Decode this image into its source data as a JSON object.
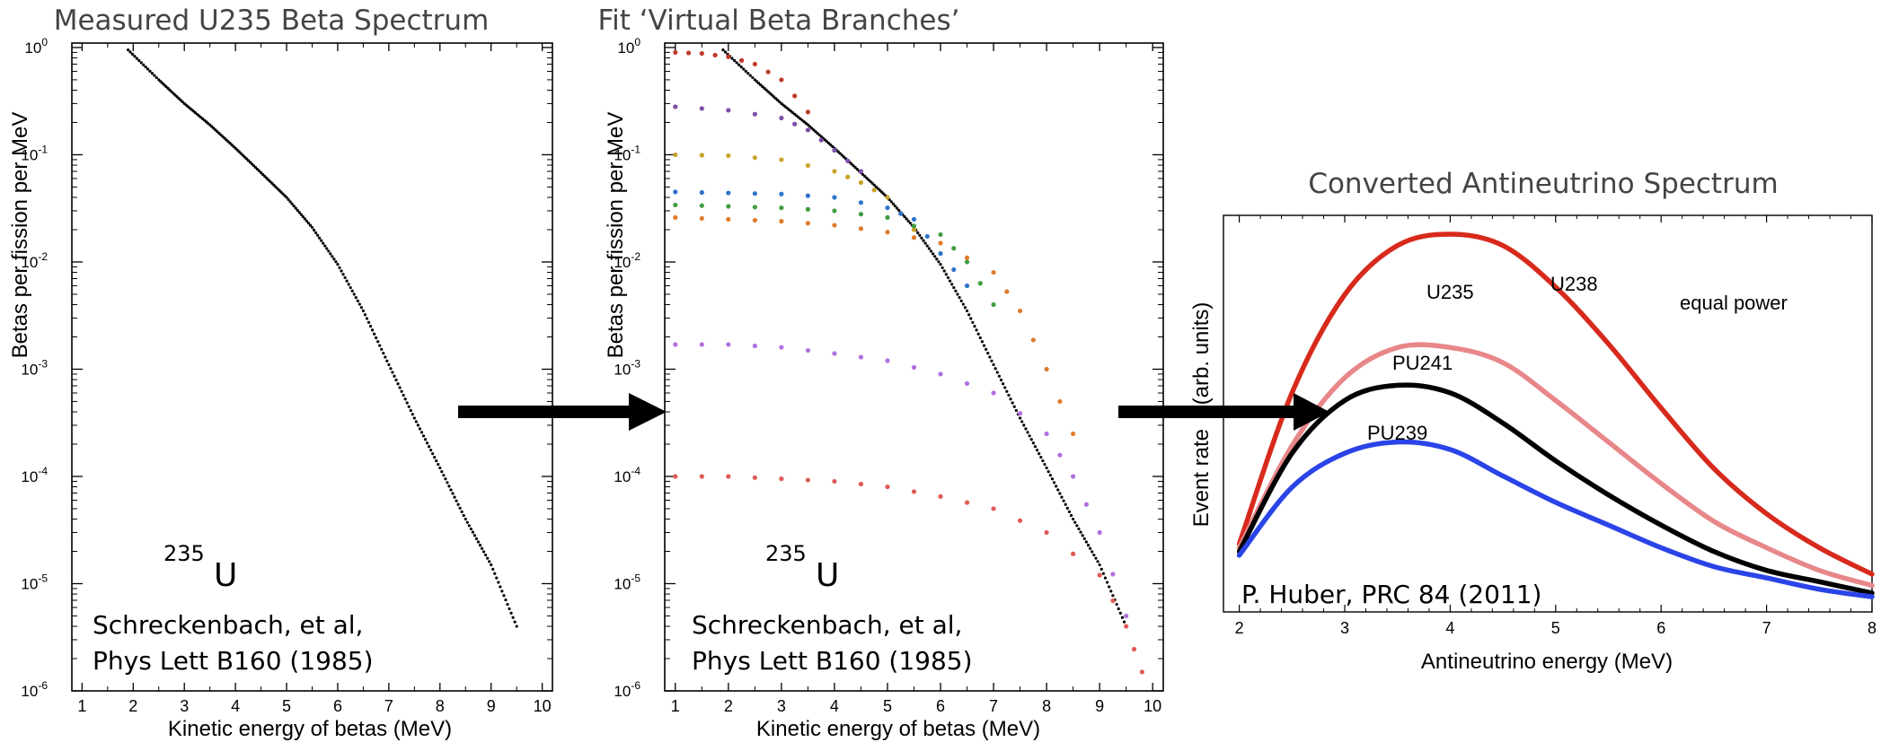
{
  "chart_data": [
    {
      "type": "scatter",
      "title": "Measured U235 Beta Spectrum",
      "xlabel": "Kinetic energy of betas (MeV)",
      "ylabel": "Betas per fission per MeV",
      "xlim": [
        0.8,
        10.2
      ],
      "ylim": [
        1e-06,
        1.1
      ],
      "y_scale": "log",
      "x_ticks": [
        "1",
        "2",
        "3",
        "4",
        "5",
        "6",
        "7",
        "8",
        "9",
        "10"
      ],
      "y_ticks": [
        {
          "base": "10",
          "exp": "0"
        },
        {
          "base": "10",
          "exp": "-1"
        },
        {
          "base": "10",
          "exp": "-2"
        },
        {
          "base": "10",
          "exp": "-3"
        },
        {
          "base": "10",
          "exp": "-4"
        },
        {
          "base": "10",
          "exp": "-5"
        },
        {
          "base": "10",
          "exp": "-6"
        }
      ],
      "isotope_label": {
        "mass": "235",
        "symbol": "U"
      },
      "reference": [
        "Schreckenbach, et al,",
        "Phys Lett B160 (1985)"
      ],
      "series": [
        {
          "color": "#000000",
          "x": [
            1.9,
            2.5,
            3,
            3.5,
            4,
            4.5,
            5,
            5.5,
            6,
            6.5,
            7,
            7.5,
            8,
            8.5,
            9,
            9.5
          ],
          "y": [
            0.95,
            0.5,
            0.3,
            0.19,
            0.115,
            0.068,
            0.04,
            0.021,
            0.0095,
            0.0035,
            0.0011,
            0.00035,
            0.00012,
            4e-05,
            1.5e-05,
            4e-06
          ]
        }
      ]
    },
    {
      "type": "scatter",
      "title": "Fit ‘Virtual Beta Branches’",
      "xlabel": "Kinetic energy of betas (MeV)",
      "ylabel": "Betas per fission per MeV",
      "xlim": [
        0.8,
        10.2
      ],
      "ylim": [
        1e-06,
        1.1
      ],
      "y_scale": "log",
      "x_ticks": [
        "1",
        "2",
        "3",
        "4",
        "5",
        "6",
        "7",
        "8",
        "9",
        "10"
      ],
      "y_ticks": [
        {
          "base": "10",
          "exp": "0"
        },
        {
          "base": "10",
          "exp": "-1"
        },
        {
          "base": "10",
          "exp": "-2"
        },
        {
          "base": "10",
          "exp": "-3"
        },
        {
          "base": "10",
          "exp": "-4"
        },
        {
          "base": "10",
          "exp": "-5"
        },
        {
          "base": "10",
          "exp": "-6"
        }
      ],
      "isotope_label": {
        "mass": "235",
        "symbol": "U"
      },
      "reference": [
        "Schreckenbach, et al,",
        "Phys Lett B160 (1985)"
      ],
      "series": [
        {
          "color": "#000000",
          "x": [
            1.9,
            2.5,
            3,
            3.5,
            4,
            4.5,
            5,
            5.5,
            6,
            6.5,
            7,
            7.5,
            8,
            8.5,
            9,
            9.5
          ],
          "y": [
            0.95,
            0.5,
            0.3,
            0.19,
            0.115,
            0.068,
            0.04,
            0.021,
            0.0095,
            0.0035,
            0.0011,
            0.00035,
            0.00012,
            4e-05,
            1.5e-05,
            4e-06
          ]
        },
        {
          "color": "#c0392b",
          "x": [
            1,
            1.5,
            2,
            2.5,
            3,
            3.5
          ],
          "y": [
            0.9,
            0.88,
            0.82,
            0.7,
            0.5,
            0.25
          ]
        },
        {
          "color": "#7a4fa8",
          "x": [
            1,
            2,
            3,
            3.5,
            4,
            4.5
          ],
          "y": [
            0.28,
            0.26,
            0.22,
            0.17,
            0.11,
            0.07
          ]
        },
        {
          "color": "#c9a32a",
          "x": [
            1,
            2,
            3,
            4,
            4.5,
            5,
            5.5
          ],
          "y": [
            0.1,
            0.098,
            0.09,
            0.07,
            0.055,
            0.04,
            0.02
          ]
        },
        {
          "color": "#2f73c9",
          "x": [
            1,
            2,
            3,
            4,
            5,
            5.5,
            6,
            6.5
          ],
          "y": [
            0.045,
            0.044,
            0.043,
            0.04,
            0.032,
            0.025,
            0.012,
            0.006
          ]
        },
        {
          "color": "#3f9e3f",
          "x": [
            1,
            2,
            3,
            4,
            5,
            6,
            6.5,
            7
          ],
          "y": [
            0.034,
            0.033,
            0.032,
            0.03,
            0.026,
            0.018,
            0.01,
            0.004
          ]
        },
        {
          "color": "#e07b2a",
          "x": [
            1,
            2,
            3,
            4,
            5,
            6,
            7,
            7.5,
            8,
            8.5
          ],
          "y": [
            0.026,
            0.025,
            0.024,
            0.022,
            0.019,
            0.015,
            0.008,
            0.0035,
            0.001,
            0.00025
          ]
        },
        {
          "color": "#b070e0",
          "x": [
            1,
            2,
            3,
            4,
            5,
            6,
            7,
            8,
            8.5,
            9,
            9.5
          ],
          "y": [
            0.0017,
            0.0017,
            0.0016,
            0.0014,
            0.0012,
            0.0009,
            0.0006,
            0.00025,
            0.0001,
            3e-05,
            5e-06
          ]
        },
        {
          "color": "#e05a55",
          "x": [
            1,
            2,
            3,
            4,
            5,
            6,
            7,
            8,
            9,
            9.5,
            9.8
          ],
          "y": [
            0.0001,
            0.0001,
            9.5e-05,
            9e-05,
            8e-05,
            6.5e-05,
            5e-05,
            3e-05,
            1.2e-05,
            4e-06,
            1.5e-06
          ]
        }
      ]
    },
    {
      "type": "line",
      "title": "Converted Antineutrino Spectrum",
      "xlabel": "Antineutrino energy (MeV)",
      "ylabel": "Event rate    (arb. units)",
      "xlim": [
        1.85,
        8.0
      ],
      "ylim": [
        0,
        1.05
      ],
      "x_ticks": [
        "2",
        "3",
        "4",
        "5",
        "6",
        "7",
        "8"
      ],
      "note": "equal power",
      "reference": "P. Huber, PRC 84 (2011)",
      "series": [
        {
          "name": "U238",
          "color": "#d72a1c",
          "x": [
            2,
            2.5,
            3,
            3.5,
            4,
            4.5,
            5,
            5.5,
            6,
            6.5,
            7,
            7.5,
            8
          ],
          "y": [
            0.18,
            0.58,
            0.84,
            0.97,
            1.0,
            0.97,
            0.86,
            0.71,
            0.54,
            0.38,
            0.26,
            0.17,
            0.1
          ]
        },
        {
          "name": "U235",
          "color": "#e8878a",
          "x": [
            2,
            2.5,
            3,
            3.5,
            4,
            4.5,
            5,
            5.5,
            6,
            6.5,
            7,
            7.5,
            8
          ],
          "y": [
            0.17,
            0.44,
            0.62,
            0.7,
            0.7,
            0.66,
            0.56,
            0.45,
            0.34,
            0.24,
            0.17,
            0.11,
            0.07
          ]
        },
        {
          "name": "PU241",
          "color": "#000000",
          "x": [
            2,
            2.5,
            3,
            3.5,
            4,
            4.5,
            5,
            5.5,
            6,
            6.5,
            7,
            7.5,
            8
          ],
          "y": [
            0.16,
            0.42,
            0.56,
            0.6,
            0.58,
            0.5,
            0.4,
            0.31,
            0.23,
            0.16,
            0.11,
            0.08,
            0.05
          ]
        },
        {
          "name": "PU239",
          "color": "#2a44e8",
          "x": [
            2,
            2.5,
            3,
            3.5,
            4,
            4.5,
            5,
            5.5,
            6,
            6.5,
            7,
            7.5,
            8
          ],
          "y": [
            0.15,
            0.33,
            0.42,
            0.45,
            0.43,
            0.36,
            0.29,
            0.23,
            0.17,
            0.12,
            0.09,
            0.06,
            0.04
          ]
        }
      ]
    }
  ]
}
